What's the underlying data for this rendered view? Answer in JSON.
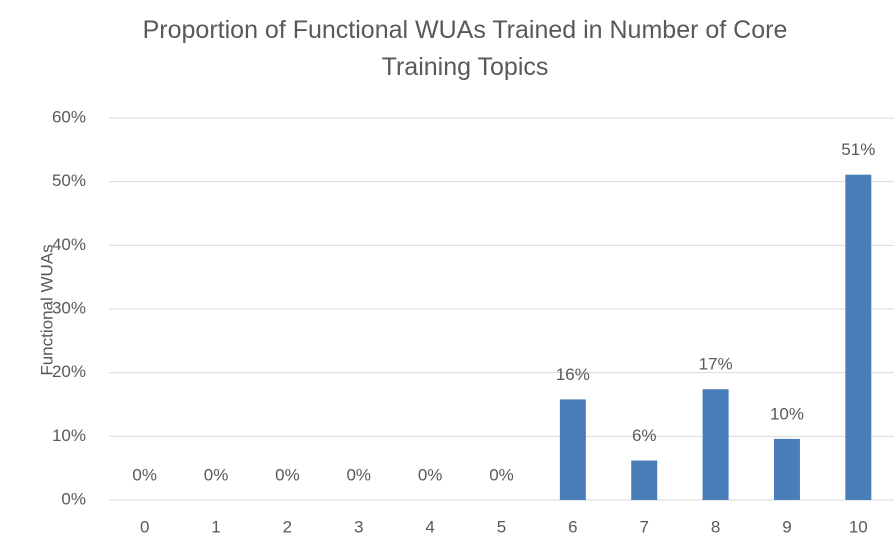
{
  "chart_data": {
    "type": "bar",
    "title": "Proportion of Functional WUAs Trained in Number of Core Training Topics",
    "y_label": "Functional WUAs",
    "categories": [
      "0",
      "1",
      "2",
      "3",
      "4",
      "5",
      "6",
      "7",
      "8",
      "9",
      "10"
    ],
    "values": [
      0,
      0,
      0,
      0,
      0,
      0,
      15.8,
      6.2,
      17.4,
      9.6,
      51.1
    ],
    "value_labels": [
      "0%",
      "0%",
      "0%",
      "0%",
      "0%",
      "0%",
      "16%",
      "6%",
      "17%",
      "10%",
      "51%"
    ],
    "color": "#4a7ebb",
    "ylim": [
      0,
      60
    ],
    "yticks": [
      {
        "value": 0,
        "label": "0%"
      },
      {
        "value": 10,
        "label": "10%"
      },
      {
        "value": 20,
        "label": "20%"
      },
      {
        "value": 30,
        "label": "30%"
      },
      {
        "value": 40,
        "label": "40%"
      },
      {
        "value": 50,
        "label": "50%"
      },
      {
        "value": 60,
        "label": "60%"
      }
    ],
    "grid": true
  }
}
